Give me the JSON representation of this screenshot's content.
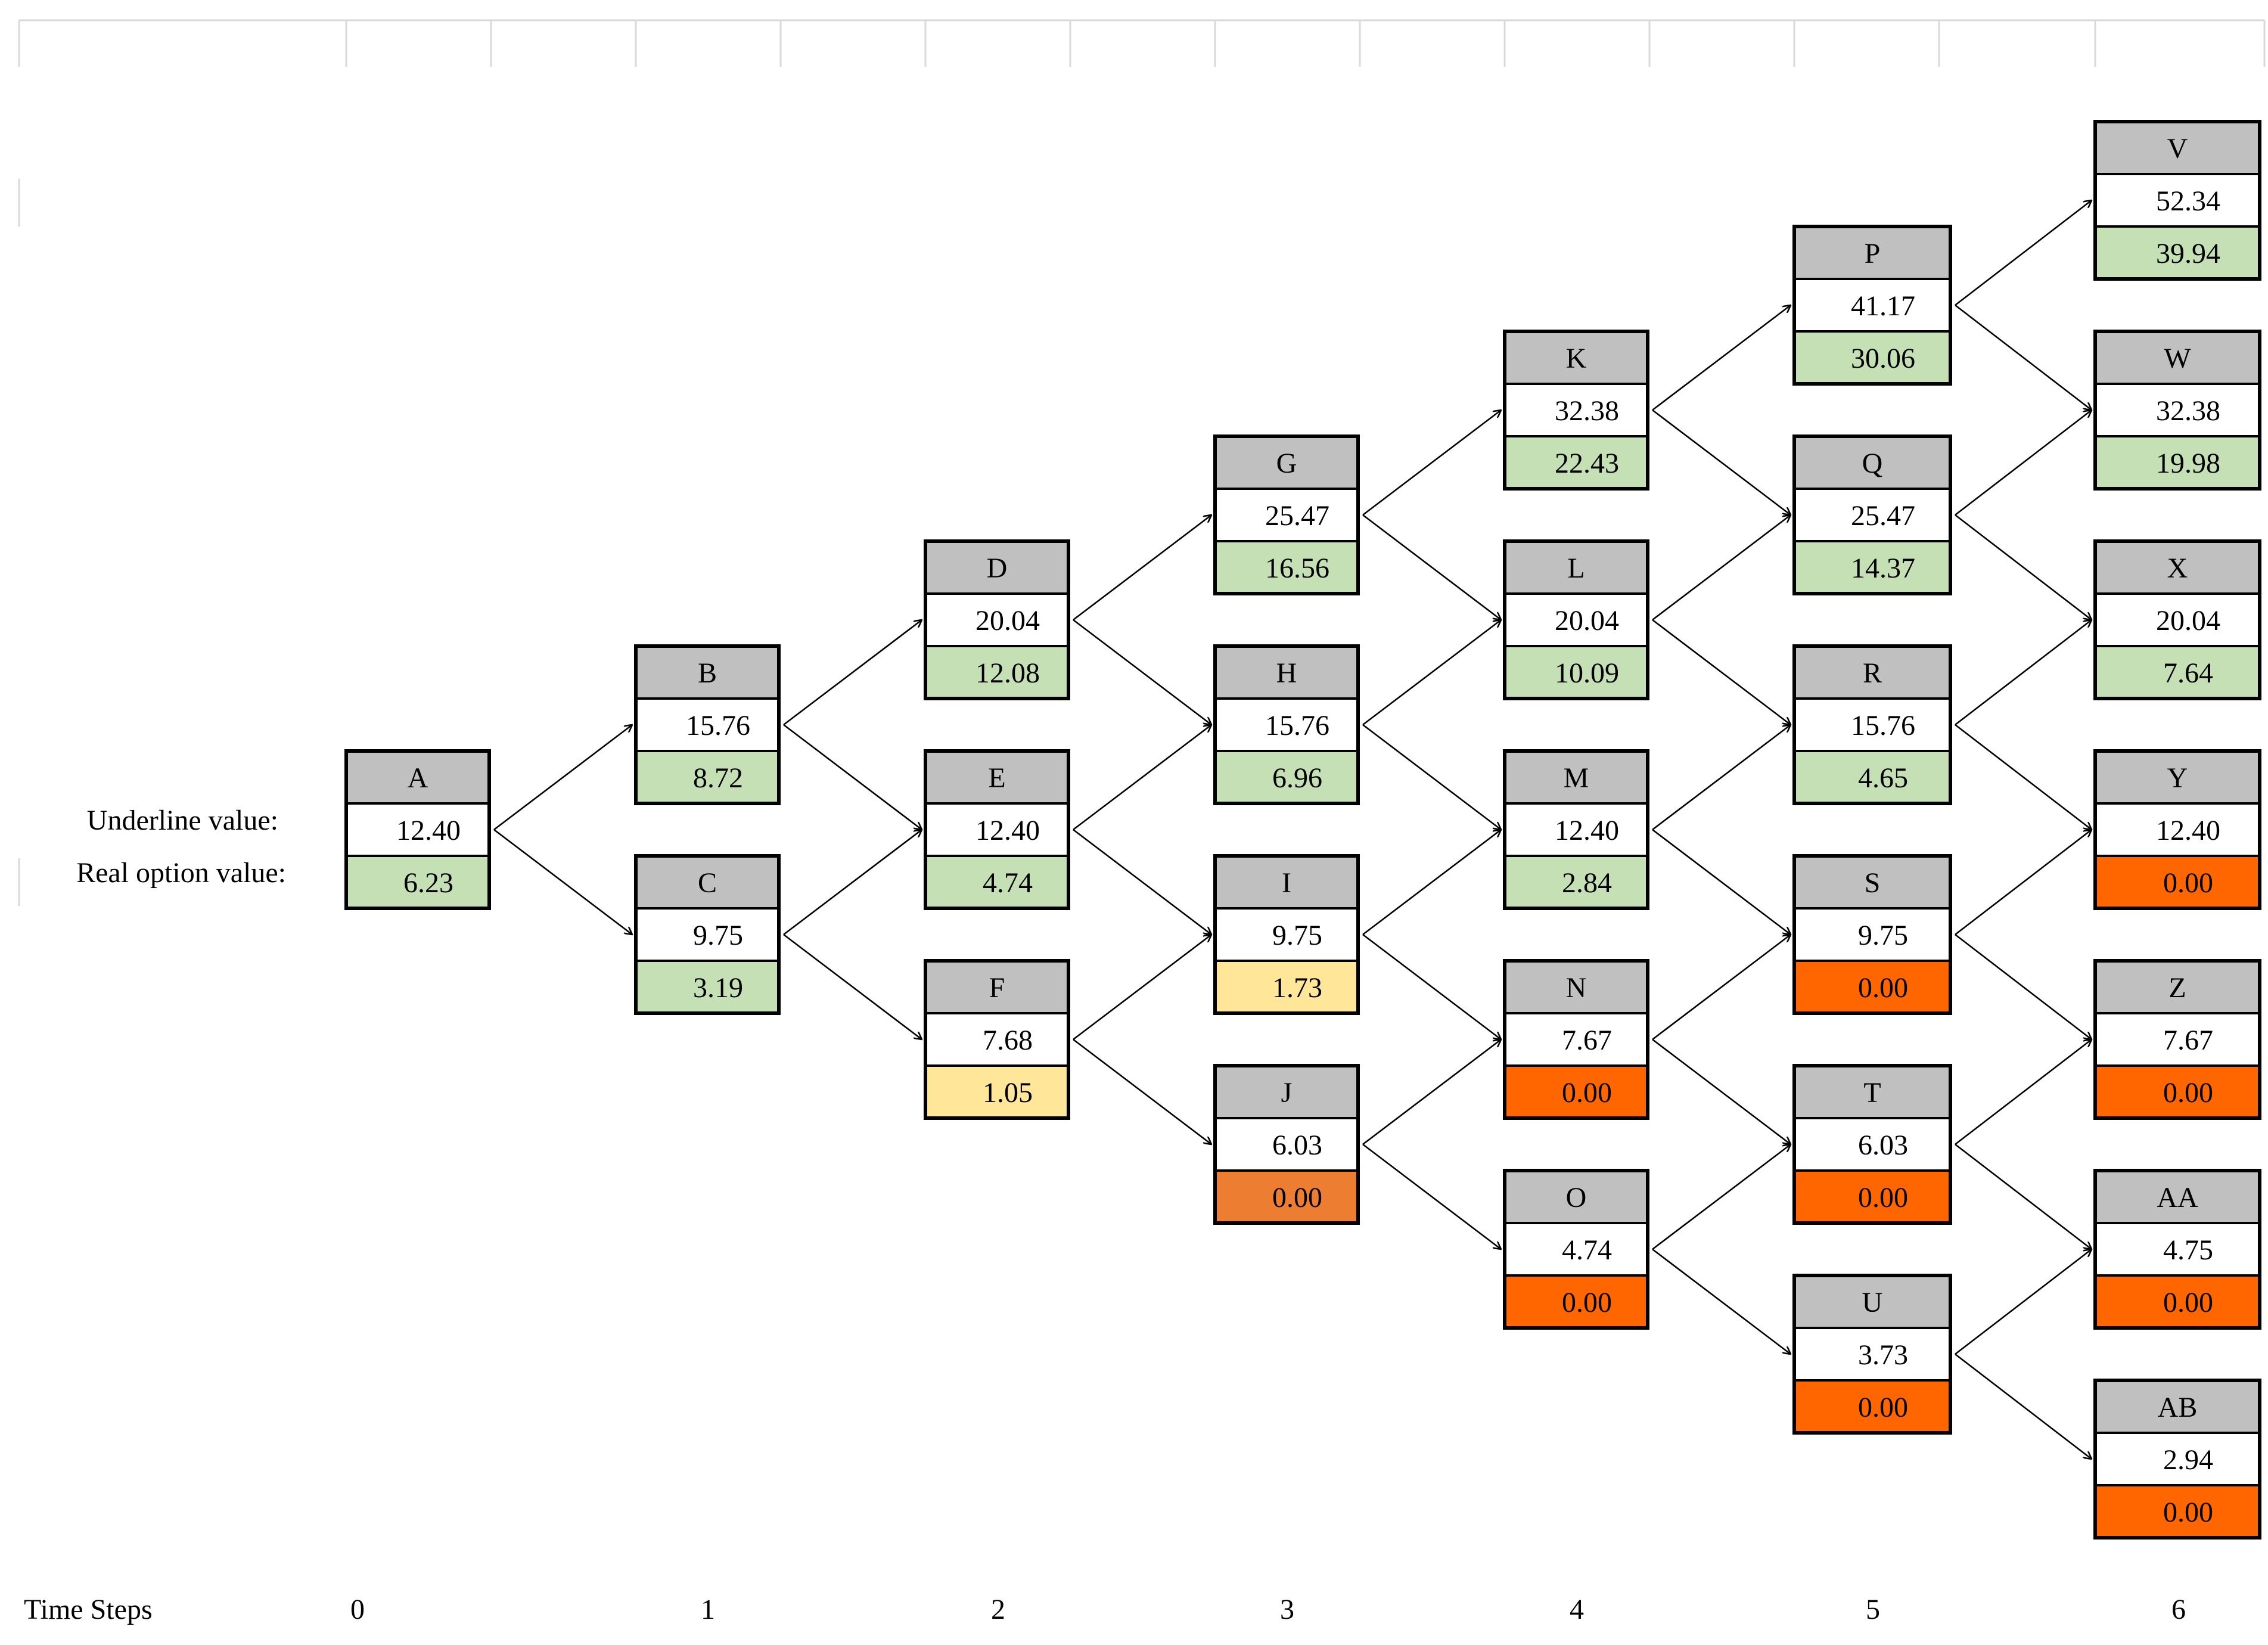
{
  "labels": {
    "underline_value": "Underline value:",
    "real_option_value": "Real option value:",
    "time_steps": "Time Steps"
  },
  "time_steps": [
    "0",
    "1",
    "2",
    "3",
    "4",
    "5",
    "6"
  ],
  "colors": {
    "header": "#c0c0c0",
    "green": "#c5e0b4",
    "yellow": "#ffe699",
    "light-orange": "#ed7d31",
    "orange": "#ff6600",
    "white": "#ffffff",
    "border": "#000000",
    "gridline": "#d9d9d9"
  },
  "nodes": [
    {
      "id": "A",
      "step": 0,
      "underline": "12.40",
      "option": "6.23",
      "color": "green"
    },
    {
      "id": "B",
      "step": 1,
      "underline": "15.76",
      "option": "8.72",
      "color": "green"
    },
    {
      "id": "C",
      "step": 1,
      "underline": "9.75",
      "option": "3.19",
      "color": "green"
    },
    {
      "id": "D",
      "step": 2,
      "underline": "20.04",
      "option": "12.08",
      "color": "green"
    },
    {
      "id": "E",
      "step": 2,
      "underline": "12.40",
      "option": "4.74",
      "color": "green"
    },
    {
      "id": "F",
      "step": 2,
      "underline": "7.68",
      "option": "1.05",
      "color": "yellow"
    },
    {
      "id": "G",
      "step": 3,
      "underline": "25.47",
      "option": "16.56",
      "color": "green"
    },
    {
      "id": "H",
      "step": 3,
      "underline": "15.76",
      "option": "6.96",
      "color": "green"
    },
    {
      "id": "I",
      "step": 3,
      "underline": "9.75",
      "option": "1.73",
      "color": "yellow"
    },
    {
      "id": "J",
      "step": 3,
      "underline": "6.03",
      "option": "0.00",
      "color": "light-orange"
    },
    {
      "id": "K",
      "step": 4,
      "underline": "32.38",
      "option": "22.43",
      "color": "green"
    },
    {
      "id": "L",
      "step": 4,
      "underline": "20.04",
      "option": "10.09",
      "color": "green"
    },
    {
      "id": "M",
      "step": 4,
      "underline": "12.40",
      "option": "2.84",
      "color": "green"
    },
    {
      "id": "N",
      "step": 4,
      "underline": "7.67",
      "option": "0.00",
      "color": "orange"
    },
    {
      "id": "O",
      "step": 4,
      "underline": "4.74",
      "option": "0.00",
      "color": "orange"
    },
    {
      "id": "P",
      "step": 5,
      "underline": "41.17",
      "option": "30.06",
      "color": "green"
    },
    {
      "id": "Q",
      "step": 5,
      "underline": "25.47",
      "option": "14.37",
      "color": "green"
    },
    {
      "id": "R",
      "step": 5,
      "underline": "15.76",
      "option": "4.65",
      "color": "green"
    },
    {
      "id": "S",
      "step": 5,
      "underline": "9.75",
      "option": "0.00",
      "color": "orange"
    },
    {
      "id": "T",
      "step": 5,
      "underline": "6.03",
      "option": "0.00",
      "color": "orange"
    },
    {
      "id": "U",
      "step": 5,
      "underline": "3.73",
      "option": "0.00",
      "color": "orange"
    },
    {
      "id": "V",
      "step": 6,
      "underline": "52.34",
      "option": "39.94",
      "color": "green"
    },
    {
      "id": "W",
      "step": 6,
      "underline": "32.38",
      "option": "19.98",
      "color": "green"
    },
    {
      "id": "X",
      "step": 6,
      "underline": "20.04",
      "option": "7.64",
      "color": "green"
    },
    {
      "id": "Y",
      "step": 6,
      "underline": "12.40",
      "option": "0.00",
      "color": "orange"
    },
    {
      "id": "Z",
      "step": 6,
      "underline": "7.67",
      "option": "0.00",
      "color": "orange"
    },
    {
      "id": "AA",
      "step": 6,
      "underline": "4.75",
      "option": "0.00",
      "color": "orange"
    },
    {
      "id": "AB",
      "step": 6,
      "underline": "2.94",
      "option": "0.00",
      "color": "orange"
    }
  ]
}
